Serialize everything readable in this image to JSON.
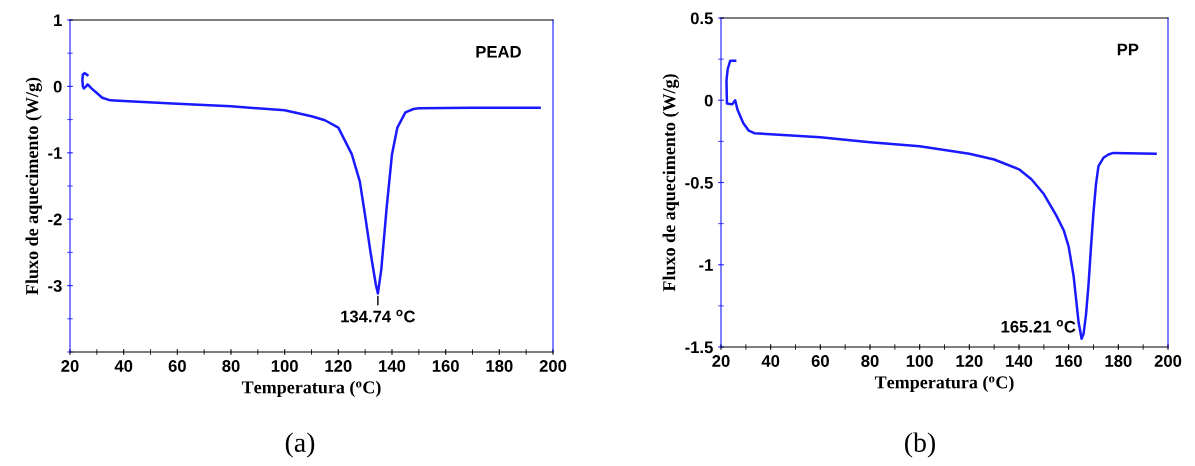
{
  "chart_data": [
    {
      "type": "line",
      "xlabel": "Temperatura ($^{o}$C)",
      "ylabel": "Fluxo de aquecimento (W/g)",
      "xlim": [
        20,
        200
      ],
      "ylim": [
        -4,
        1
      ],
      "xticks": [
        20,
        40,
        60,
        80,
        100,
        120,
        140,
        160,
        180,
        200
      ],
      "yticks": [
        1,
        0,
        -1,
        -2,
        -3
      ],
      "grid": false,
      "legend": false,
      "marker": "none",
      "line_style": "solid",
      "series": [
        {
          "color": "#1a1aff",
          "x": [
            26.5,
            25.4,
            24.8,
            24.6,
            24.8,
            25.2,
            26.0,
            26.6,
            28,
            30,
            32,
            35,
            40,
            60,
            80,
            100,
            110,
            115,
            120,
            125,
            128,
            130,
            132,
            134,
            134.74,
            136,
            138,
            140,
            142,
            145,
            148,
            150,
            170,
            195
          ],
          "values": [
            0.17,
            0.2,
            0.18,
            0.1,
            0.0,
            -0.03,
            0.0,
            0.03,
            -0.03,
            -0.1,
            -0.17,
            -0.21,
            -0.22,
            -0.26,
            -0.3,
            -0.36,
            -0.45,
            -0.51,
            -0.62,
            -1.02,
            -1.43,
            -1.95,
            -2.5,
            -2.99,
            -3.12,
            -2.76,
            -1.83,
            -1.02,
            -0.62,
            -0.39,
            -0.34,
            -0.33,
            -0.32,
            -0.32
          ]
        }
      ],
      "annotations": [
        "PEAD",
        "(a)",
        {
          "text": "134.74 $^{o}$C",
          "x": 134.74,
          "y": -3.12
        }
      ]
    },
    {
      "type": "line",
      "xlabel": "Temperatura ($^{o}$C)",
      "ylabel": "Fluxo de aquecimento (W/g)",
      "xlim": [
        20,
        200
      ],
      "ylim": [
        -1.5,
        0.5
      ],
      "xticks": [
        20,
        40,
        60,
        80,
        100,
        120,
        140,
        160,
        180,
        200
      ],
      "yticks": [
        0.5,
        0,
        -0.5,
        -1,
        -1.5
      ],
      "grid": false,
      "legend": false,
      "marker": "none",
      "line_style": "solid",
      "series": [
        {
          "color": "#1a1aff",
          "x": [
            25.7,
            23.7,
            22.7,
            22.2,
            22.4,
            24.5,
            25.7,
            26.7,
            29,
            31.2,
            33.4,
            60,
            80,
            100,
            120,
            130,
            140,
            145,
            150,
            155,
            158,
            160,
            162,
            163,
            164,
            165.21,
            166,
            167,
            168,
            169,
            170,
            171,
            172,
            174,
            176,
            178,
            195
          ],
          "values": [
            0.24,
            0.24,
            0.19,
            0.12,
            -0.02,
            -0.025,
            0.0,
            -0.06,
            -0.14,
            -0.185,
            -0.2,
            -0.225,
            -0.255,
            -0.28,
            -0.325,
            -0.36,
            -0.42,
            -0.48,
            -0.57,
            -0.7,
            -0.79,
            -0.89,
            -1.07,
            -1.21,
            -1.35,
            -1.45,
            -1.42,
            -1.3,
            -1.12,
            -0.89,
            -0.68,
            -0.51,
            -0.4,
            -0.35,
            -0.33,
            -0.32,
            -0.325
          ]
        }
      ],
      "annotations": [
        "PP",
        "(b)",
        {
          "text": "165.21 $^{o}$C",
          "x": 165.21,
          "y": -1.45
        }
      ]
    }
  ]
}
